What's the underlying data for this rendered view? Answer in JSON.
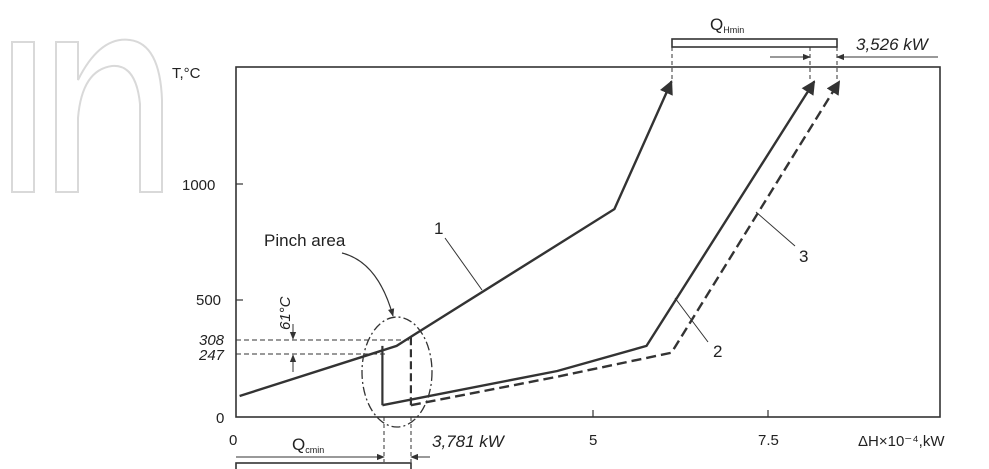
{
  "chart_data": {
    "type": "line",
    "ylabel": "T,°C",
    "xlabel": "ΔH×10⁻⁴,kW",
    "xlim": [
      0,
      10
    ],
    "ylim": [
      0,
      1640
    ],
    "grid": false,
    "xticks": [
      {
        "value": 0,
        "label": "0"
      },
      {
        "value": 5,
        "label": "5"
      },
      {
        "value": 7.5,
        "label": "7.5"
      }
    ],
    "yticks": [
      {
        "value": 0,
        "label": "0"
      },
      {
        "value": 500,
        "label": "500"
      },
      {
        "value": 1000,
        "label": "1000"
      }
    ],
    "special_yticks": [
      {
        "value": 308,
        "label": "308"
      },
      {
        "value": 247,
        "label": "247"
      }
    ],
    "series": [
      {
        "id": "1",
        "style": "solid",
        "points": [
          [
            0.05,
            70
          ],
          [
            2.25,
            290
          ],
          [
            2.5,
            340
          ],
          [
            5.3,
            890
          ],
          [
            6.1,
            1450
          ]
        ]
      },
      {
        "id": "2",
        "style": "solid",
        "points": [
          [
            2.05,
            30
          ],
          [
            4.5,
            180
          ],
          [
            5.75,
            290
          ],
          [
            8.1,
            1450
          ]
        ]
      },
      {
        "id": "3",
        "style": "dashed",
        "points": [
          [
            2.45,
            30
          ],
          [
            4.5,
            155
          ],
          [
            6.1,
            260
          ],
          [
            8.45,
            1450
          ]
        ]
      }
    ],
    "series_labels": [
      {
        "id": "1",
        "text": "1"
      },
      {
        "id": "2",
        "text": "2"
      },
      {
        "id": "3",
        "text": "3"
      }
    ],
    "annotations": {
      "pinch_area": "Pinch area",
      "delta_t": "61°C",
      "q_hmin": "Q",
      "q_hmin_sub": "Hmin",
      "q_hmin_value": "3,526 kW",
      "q_cmin": "Q",
      "q_cmin_sub": "cmin",
      "q_cmin_value": "3,781 kW"
    },
    "colors": {
      "line": "#333333",
      "frame": "#333333",
      "watermark": "#d6d6d6"
    }
  }
}
